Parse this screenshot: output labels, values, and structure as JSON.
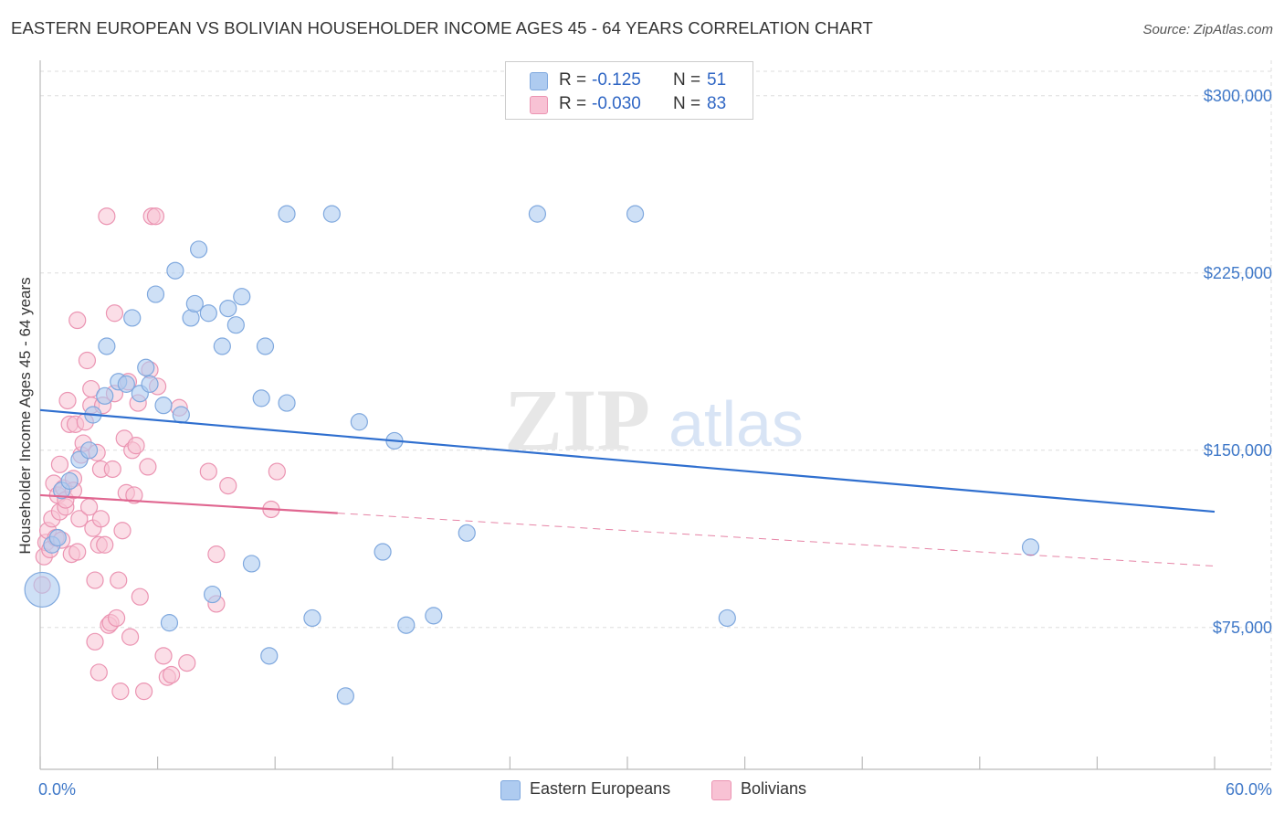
{
  "title": "EASTERN EUROPEAN VS BOLIVIAN HOUSEHOLDER INCOME AGES 45 - 64 YEARS CORRELATION CHART",
  "source": "Source: ZipAtlas.com",
  "watermark": {
    "zip": "ZIP",
    "atlas": "atlas"
  },
  "stats": {
    "eastern": {
      "r_label": "R =",
      "r_value": "-0.125",
      "n_label": "N =",
      "n_value": "51"
    },
    "bolivian": {
      "r_label": "R =",
      "r_value": "-0.030",
      "n_label": "N =",
      "n_value": "83"
    }
  },
  "legend": {
    "eastern": "Eastern Europeans",
    "bolivian": "Bolivians"
  },
  "colors": {
    "eastern_fill": "#aecbf0",
    "eastern_stroke": "#7fa8de",
    "eastern_line": "#2f6fcf",
    "bolivian_fill": "#f8c2d4",
    "bolivian_stroke": "#eb94b2",
    "bolivian_line": "#e06690",
    "axis_text": "#3f78c8",
    "grid": "#dddddd"
  },
  "chart_data": {
    "type": "scatter",
    "title": "EASTERN EUROPEAN VS BOLIVIAN HOUSEHOLDER INCOME AGES 45 - 64 YEARS CORRELATION CHART",
    "xlabel": "",
    "ylabel": "Householder Income Ages 45 - 64 years",
    "xlim": [
      0,
      60
    ],
    "ylim": [
      15000,
      315000
    ],
    "x_tick_labels": [
      "0.0%",
      "60.0%"
    ],
    "y_ticks": [
      75000,
      150000,
      225000,
      300000
    ],
    "y_tick_labels": [
      "$75,000",
      "$150,000",
      "$225,000",
      "$300,000"
    ],
    "grid": true,
    "legend_position": "bottom",
    "series": [
      {
        "name": "Eastern Europeans",
        "r": -0.125,
        "n": 51,
        "trend": {
          "x": [
            0,
            60
          ],
          "y": [
            167000,
            124000
          ],
          "dashed_from": null
        },
        "points": [
          {
            "x": 0.1,
            "y": 91000,
            "big": true
          },
          {
            "x": 0.6,
            "y": 110000
          },
          {
            "x": 0.9,
            "y": 113000
          },
          {
            "x": 1.1,
            "y": 133000
          },
          {
            "x": 1.5,
            "y": 137000
          },
          {
            "x": 2.0,
            "y": 146000
          },
          {
            "x": 2.5,
            "y": 150000
          },
          {
            "x": 2.7,
            "y": 165000
          },
          {
            "x": 3.3,
            "y": 173000
          },
          {
            "x": 3.4,
            "y": 194000
          },
          {
            "x": 4.0,
            "y": 179000
          },
          {
            "x": 4.4,
            "y": 178000
          },
          {
            "x": 4.7,
            "y": 206000
          },
          {
            "x": 5.1,
            "y": 174000
          },
          {
            "x": 5.4,
            "y": 185000
          },
          {
            "x": 5.6,
            "y": 178000
          },
          {
            "x": 5.9,
            "y": 216000
          },
          {
            "x": 6.3,
            "y": 169000
          },
          {
            "x": 6.6,
            "y": 77000
          },
          {
            "x": 6.9,
            "y": 226000
          },
          {
            "x": 7.2,
            "y": 165000
          },
          {
            "x": 7.7,
            "y": 206000
          },
          {
            "x": 7.9,
            "y": 212000
          },
          {
            "x": 8.1,
            "y": 235000
          },
          {
            "x": 8.6,
            "y": 208000
          },
          {
            "x": 8.8,
            "y": 89000
          },
          {
            "x": 9.3,
            "y": 194000
          },
          {
            "x": 9.6,
            "y": 210000
          },
          {
            "x": 10.0,
            "y": 203000
          },
          {
            "x": 10.3,
            "y": 215000
          },
          {
            "x": 10.8,
            "y": 102000
          },
          {
            "x": 11.3,
            "y": 172000
          },
          {
            "x": 11.5,
            "y": 194000
          },
          {
            "x": 11.7,
            "y": 63000
          },
          {
            "x": 12.6,
            "y": 250000
          },
          {
            "x": 12.6,
            "y": 170000
          },
          {
            "x": 13.9,
            "y": 79000
          },
          {
            "x": 14.9,
            "y": 250000
          },
          {
            "x": 15.6,
            "y": 46000
          },
          {
            "x": 16.3,
            "y": 162000
          },
          {
            "x": 17.5,
            "y": 107000
          },
          {
            "x": 18.1,
            "y": 154000
          },
          {
            "x": 18.7,
            "y": 76000
          },
          {
            "x": 20.1,
            "y": 80000
          },
          {
            "x": 21.8,
            "y": 115000
          },
          {
            "x": 25.4,
            "y": 250000
          },
          {
            "x": 30.4,
            "y": 250000
          },
          {
            "x": 35.1,
            "y": 79000
          },
          {
            "x": 50.6,
            "y": 109000
          }
        ]
      },
      {
        "name": "Bolivians",
        "r": -0.03,
        "n": 83,
        "trend": {
          "x": [
            0,
            60
          ],
          "y": [
            131000,
            101000
          ],
          "dashed_from": 15.2
        },
        "points": [
          {
            "x": 0.1,
            "y": 93000
          },
          {
            "x": 0.2,
            "y": 105000
          },
          {
            "x": 0.3,
            "y": 111000
          },
          {
            "x": 0.4,
            "y": 116000
          },
          {
            "x": 0.5,
            "y": 108000
          },
          {
            "x": 0.6,
            "y": 121000
          },
          {
            "x": 0.7,
            "y": 136000
          },
          {
            "x": 0.8,
            "y": 113000
          },
          {
            "x": 0.9,
            "y": 131000
          },
          {
            "x": 1.0,
            "y": 144000
          },
          {
            "x": 1.0,
            "y": 124000
          },
          {
            "x": 1.1,
            "y": 112000
          },
          {
            "x": 1.2,
            "y": 134000
          },
          {
            "x": 1.3,
            "y": 126000
          },
          {
            "x": 1.3,
            "y": 129000
          },
          {
            "x": 1.4,
            "y": 171000
          },
          {
            "x": 1.5,
            "y": 161000
          },
          {
            "x": 1.6,
            "y": 106000
          },
          {
            "x": 1.7,
            "y": 138000
          },
          {
            "x": 1.7,
            "y": 133000
          },
          {
            "x": 1.8,
            "y": 161000
          },
          {
            "x": 1.9,
            "y": 205000
          },
          {
            "x": 1.9,
            "y": 107000
          },
          {
            "x": 2.0,
            "y": 121000
          },
          {
            "x": 2.1,
            "y": 148000
          },
          {
            "x": 2.2,
            "y": 153000
          },
          {
            "x": 2.3,
            "y": 162000
          },
          {
            "x": 2.4,
            "y": 188000
          },
          {
            "x": 2.5,
            "y": 126000
          },
          {
            "x": 2.6,
            "y": 169000
          },
          {
            "x": 2.6,
            "y": 176000
          },
          {
            "x": 2.7,
            "y": 117000
          },
          {
            "x": 2.8,
            "y": 69000
          },
          {
            "x": 2.8,
            "y": 95000
          },
          {
            "x": 2.9,
            "y": 149000
          },
          {
            "x": 3.0,
            "y": 110000
          },
          {
            "x": 3.0,
            "y": 56000
          },
          {
            "x": 3.1,
            "y": 142000
          },
          {
            "x": 3.1,
            "y": 121000
          },
          {
            "x": 3.2,
            "y": 169000
          },
          {
            "x": 3.3,
            "y": 110000
          },
          {
            "x": 3.4,
            "y": 249000
          },
          {
            "x": 3.5,
            "y": 76000
          },
          {
            "x": 3.6,
            "y": 77000
          },
          {
            "x": 3.7,
            "y": 142000
          },
          {
            "x": 3.8,
            "y": 208000
          },
          {
            "x": 3.8,
            "y": 174000
          },
          {
            "x": 3.9,
            "y": 79000
          },
          {
            "x": 4.0,
            "y": 95000
          },
          {
            "x": 4.1,
            "y": 48000
          },
          {
            "x": 4.2,
            "y": 116000
          },
          {
            "x": 4.3,
            "y": 155000
          },
          {
            "x": 4.4,
            "y": 132000
          },
          {
            "x": 4.5,
            "y": 179000
          },
          {
            "x": 4.6,
            "y": 71000
          },
          {
            "x": 4.7,
            "y": 150000
          },
          {
            "x": 4.8,
            "y": 131000
          },
          {
            "x": 4.9,
            "y": 152000
          },
          {
            "x": 5.0,
            "y": 170000
          },
          {
            "x": 5.1,
            "y": 88000
          },
          {
            "x": 5.3,
            "y": 48000
          },
          {
            "x": 5.5,
            "y": 143000
          },
          {
            "x": 5.6,
            "y": 184000
          },
          {
            "x": 5.7,
            "y": 249000
          },
          {
            "x": 5.9,
            "y": 249000
          },
          {
            "x": 6.0,
            "y": 177000
          },
          {
            "x": 6.3,
            "y": 63000
          },
          {
            "x": 6.5,
            "y": 54000
          },
          {
            "x": 6.7,
            "y": 55000
          },
          {
            "x": 7.1,
            "y": 168000
          },
          {
            "x": 7.5,
            "y": 60000
          },
          {
            "x": 8.6,
            "y": 141000
          },
          {
            "x": 9.0,
            "y": 106000
          },
          {
            "x": 9.0,
            "y": 85000
          },
          {
            "x": 9.6,
            "y": 135000
          },
          {
            "x": 11.8,
            "y": 125000
          },
          {
            "x": 12.1,
            "y": 141000
          }
        ]
      }
    ]
  }
}
